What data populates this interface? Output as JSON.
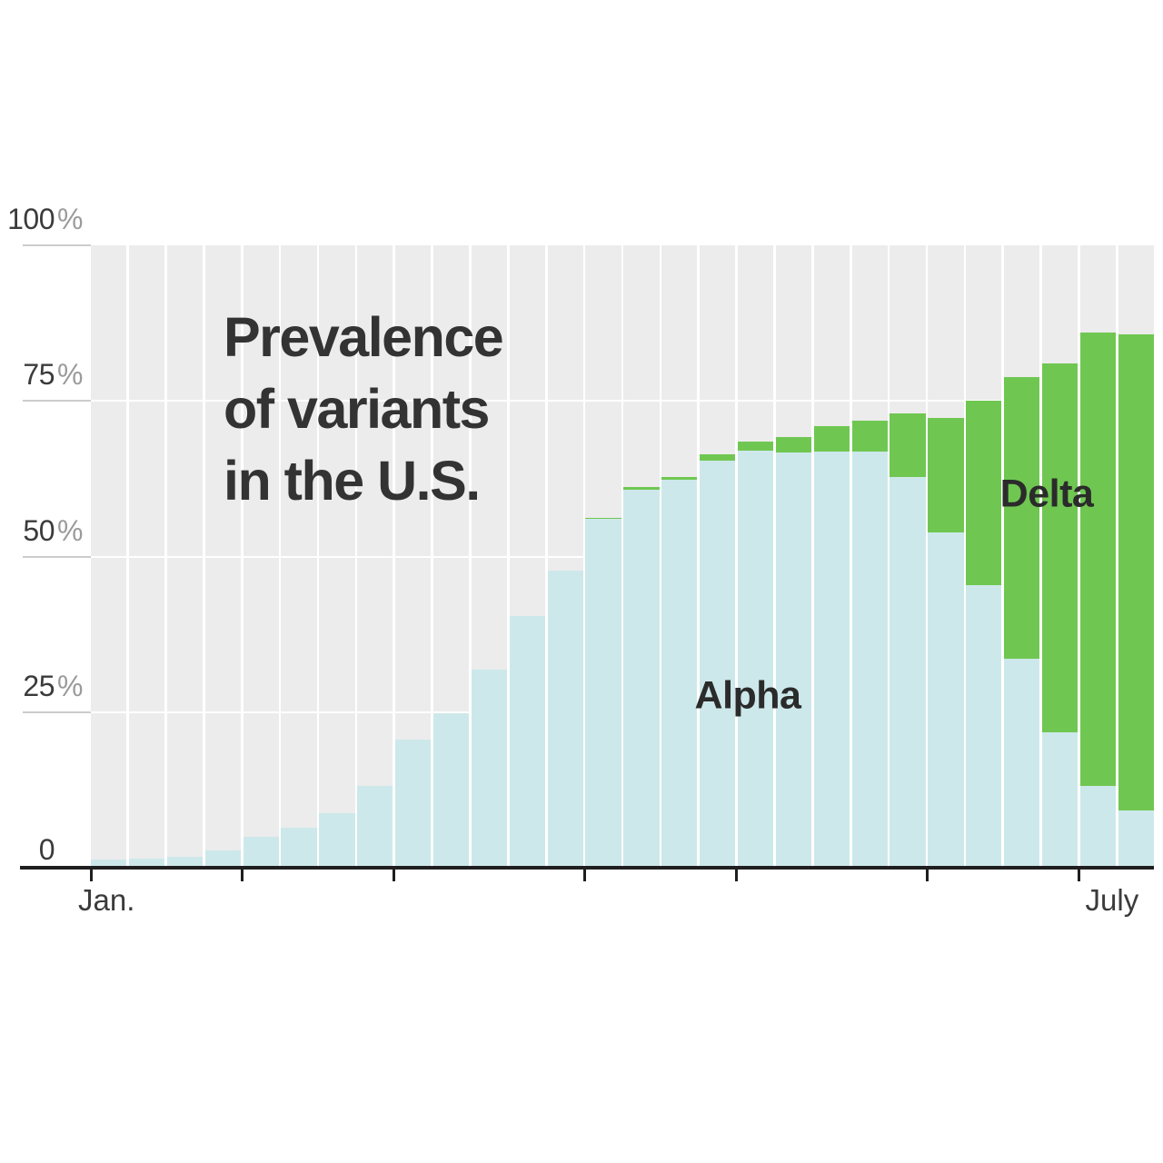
{
  "title": {
    "lines": [
      "Prevalence",
      "of variants",
      "in the U.S."
    ],
    "full": "Prevalence of variants in the U.S."
  },
  "labels": {
    "alpha": "Alpha",
    "delta": "Delta"
  },
  "colors": {
    "alpha": "#cde8ea",
    "delta": "#6fc751",
    "column_background": "#ececec",
    "axis": "#1f1f1f",
    "title_text": "#333333",
    "tick_text": "#3b3b3b",
    "percent_suffix": "#9b9b9b",
    "grid_stub": "#cccccc",
    "gridline": "#ffffff"
  },
  "chart_data": {
    "type": "bar",
    "stacked": true,
    "title": "Prevalence of variants in the U.S.",
    "x_unit": "week",
    "x_range": "January through July",
    "ylim": [
      0,
      100
    ],
    "grid": "white horizontal lines at 25/50/75 behind bars",
    "legend_position": "labels drawn on chart (Alpha on blue area, Delta on green area)",
    "y_ticks": [
      {
        "value": 100,
        "label": "100",
        "suffix": "%"
      },
      {
        "value": 75,
        "label": "75",
        "suffix": "%"
      },
      {
        "value": 50,
        "label": "50",
        "suffix": "%"
      },
      {
        "value": 25,
        "label": "25",
        "suffix": "%"
      },
      {
        "value": 0,
        "label": "0",
        "suffix": ""
      }
    ],
    "x_ticks": [
      {
        "week": 0,
        "label": "Jan."
      },
      {
        "week": 4,
        "label": ""
      },
      {
        "week": 8,
        "label": ""
      },
      {
        "week": 13,
        "label": ""
      },
      {
        "week": 17,
        "label": ""
      },
      {
        "week": 22,
        "label": ""
      },
      {
        "week": 26,
        "label": "July"
      }
    ],
    "series": [
      {
        "name": "Alpha",
        "color": "#cde8ea",
        "values": [
          1.3,
          1.4,
          1.7,
          2.8,
          5.0,
          6.4,
          8.8,
          13.2,
          20.6,
          24.8,
          31.8,
          40.4,
          47.8,
          56.0,
          60.8,
          62.3,
          65.4,
          67.0,
          66.7,
          66.8,
          66.8,
          62.8,
          53.9,
          45.4,
          33.6,
          21.8,
          13.2,
          9.2
        ]
      },
      {
        "name": "Delta",
        "color": "#6fc751",
        "values": [
          0,
          0,
          0,
          0,
          0,
          0,
          0,
          0,
          0,
          0,
          0,
          0,
          0,
          0.2,
          0.3,
          0.5,
          1.0,
          1.5,
          2.5,
          4.1,
          5.1,
          10.2,
          18.4,
          29.7,
          45.2,
          59.2,
          72.8,
          76.5
        ]
      }
    ]
  }
}
